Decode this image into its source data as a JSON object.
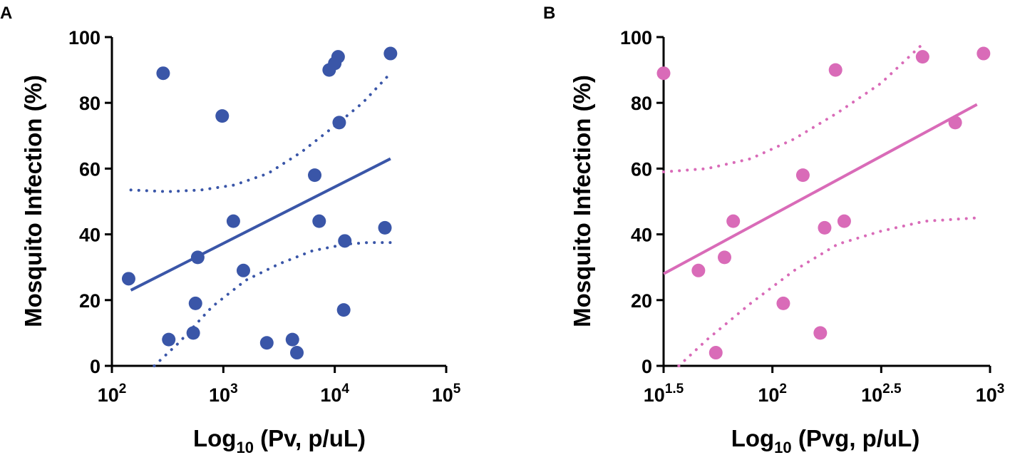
{
  "chart_data": [
    {
      "panel": "A",
      "type": "scatter",
      "xscale": "log10",
      "xlabel_main": "Log",
      "xlabel_sub": "10",
      "xlabel_rest": " (Pv, p/uL)",
      "ylabel": "Mosquito Infection (%)",
      "xlim_log": [
        2,
        5
      ],
      "ylim": [
        0,
        100
      ],
      "xticks": [
        {
          "base": "10",
          "exp": "2",
          "v": 2
        },
        {
          "base": "10",
          "exp": "3",
          "v": 3
        },
        {
          "base": "10",
          "exp": "4",
          "v": 4
        },
        {
          "base": "10",
          "exp": "5",
          "v": 5
        }
      ],
      "yticks": [
        0,
        20,
        40,
        60,
        80,
        100
      ],
      "color": "#3a56a8",
      "points": [
        {
          "x": 2.15,
          "y": 26.5
        },
        {
          "x": 2.46,
          "y": 89
        },
        {
          "x": 2.51,
          "y": 8
        },
        {
          "x": 2.73,
          "y": 10
        },
        {
          "x": 2.75,
          "y": 19
        },
        {
          "x": 2.77,
          "y": 33
        },
        {
          "x": 2.99,
          "y": 76
        },
        {
          "x": 3.09,
          "y": 44
        },
        {
          "x": 3.18,
          "y": 29
        },
        {
          "x": 3.39,
          "y": 7
        },
        {
          "x": 3.62,
          "y": 8
        },
        {
          "x": 3.66,
          "y": 4
        },
        {
          "x": 3.82,
          "y": 58
        },
        {
          "x": 3.86,
          "y": 44
        },
        {
          "x": 3.95,
          "y": 90
        },
        {
          "x": 4.0,
          "y": 92
        },
        {
          "x": 4.03,
          "y": 94
        },
        {
          "x": 4.04,
          "y": 74
        },
        {
          "x": 4.08,
          "y": 17
        },
        {
          "x": 4.09,
          "y": 38
        },
        {
          "x": 4.45,
          "y": 42
        },
        {
          "x": 4.5,
          "y": 95
        }
      ],
      "fit_line": [
        {
          "x": 2.17,
          "y": 23
        },
        {
          "x": 4.5,
          "y": 63
        }
      ],
      "ci_upper": [
        {
          "x": 2.17,
          "y": 53.5
        },
        {
          "x": 2.5,
          "y": 53
        },
        {
          "x": 2.8,
          "y": 53.5
        },
        {
          "x": 3.1,
          "y": 55
        },
        {
          "x": 3.4,
          "y": 58.5
        },
        {
          "x": 3.7,
          "y": 65
        },
        {
          "x": 4.0,
          "y": 73
        },
        {
          "x": 4.25,
          "y": 80
        },
        {
          "x": 4.5,
          "y": 89
        }
      ],
      "ci_lower": [
        {
          "x": 2.38,
          "y": 0
        },
        {
          "x": 2.6,
          "y": 7
        },
        {
          "x": 2.9,
          "y": 18
        },
        {
          "x": 3.2,
          "y": 26
        },
        {
          "x": 3.5,
          "y": 31
        },
        {
          "x": 3.8,
          "y": 35
        },
        {
          "x": 4.1,
          "y": 37
        },
        {
          "x": 4.3,
          "y": 37.5
        },
        {
          "x": 4.5,
          "y": 37.5
        }
      ]
    },
    {
      "panel": "B",
      "type": "scatter",
      "xscale": "log10",
      "xlabel_main": "Log",
      "xlabel_sub": "10",
      "xlabel_rest": " (Pvg, p/uL)",
      "ylabel": "Mosquito Infection (%)",
      "xlim_log": [
        1.5,
        3
      ],
      "ylim": [
        0,
        100
      ],
      "xticks": [
        {
          "base": "10",
          "exp": "1.5",
          "v": 1.5
        },
        {
          "base": "10",
          "exp": "2",
          "v": 2
        },
        {
          "base": "10",
          "exp": "2.5",
          "v": 2.5
        },
        {
          "base": "10",
          "exp": "3",
          "v": 3
        }
      ],
      "yticks": [
        0,
        20,
        40,
        60,
        80,
        100
      ],
      "color": "#d96bb8",
      "points": [
        {
          "x": 1.5,
          "y": 89
        },
        {
          "x": 1.66,
          "y": 29
        },
        {
          "x": 1.74,
          "y": 4
        },
        {
          "x": 1.78,
          "y": 33
        },
        {
          "x": 1.82,
          "y": 44
        },
        {
          "x": 2.05,
          "y": 19
        },
        {
          "x": 2.14,
          "y": 58
        },
        {
          "x": 2.22,
          "y": 10
        },
        {
          "x": 2.24,
          "y": 42
        },
        {
          "x": 2.29,
          "y": 90
        },
        {
          "x": 2.33,
          "y": 44
        },
        {
          "x": 2.69,
          "y": 94
        },
        {
          "x": 2.84,
          "y": 74
        },
        {
          "x": 2.97,
          "y": 95
        }
      ],
      "fit_line": [
        {
          "x": 1.5,
          "y": 28
        },
        {
          "x": 2.94,
          "y": 79.5
        }
      ],
      "ci_upper": [
        {
          "x": 1.5,
          "y": 59
        },
        {
          "x": 1.7,
          "y": 60
        },
        {
          "x": 1.9,
          "y": 63
        },
        {
          "x": 2.1,
          "y": 69
        },
        {
          "x": 2.3,
          "y": 77
        },
        {
          "x": 2.5,
          "y": 86
        },
        {
          "x": 2.7,
          "y": 98.5
        }
      ],
      "ci_lower": [
        {
          "x": 1.57,
          "y": 0
        },
        {
          "x": 1.7,
          "y": 8
        },
        {
          "x": 1.9,
          "y": 19
        },
        {
          "x": 2.1,
          "y": 29
        },
        {
          "x": 2.3,
          "y": 37
        },
        {
          "x": 2.5,
          "y": 41
        },
        {
          "x": 2.7,
          "y": 44
        },
        {
          "x": 2.94,
          "y": 45
        }
      ]
    }
  ]
}
